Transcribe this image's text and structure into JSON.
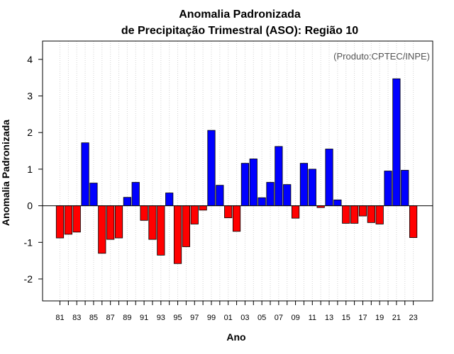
{
  "chart_data": {
    "type": "bar",
    "title_line1": "Anomalia Padronizada",
    "title_line2": "de Precipitação Trimestral (ASO): Região 10",
    "source_note": "(Produto:CPTEC/INPE)",
    "xlabel": "Ano",
    "ylabel": "Anomalia Padronizada",
    "ylim": [
      -2.6,
      4.5
    ],
    "yticks": [
      -2,
      -1,
      0,
      1,
      2,
      3,
      4
    ],
    "ytick_labels": [
      "-2",
      "-1",
      "0",
      "1",
      "2",
      "3",
      "4"
    ],
    "grid": "vertical dotted",
    "categories": [
      "81",
      "82",
      "83",
      "84",
      "85",
      "86",
      "87",
      "88",
      "89",
      "90",
      "91",
      "92",
      "93",
      "94",
      "95",
      "96",
      "97",
      "98",
      "99",
      "00",
      "01",
      "02",
      "03",
      "04",
      "05",
      "06",
      "07",
      "08",
      "09",
      "10",
      "11",
      "12",
      "13",
      "14",
      "15",
      "16",
      "17",
      "18",
      "19",
      "20",
      "21",
      "22",
      "23"
    ],
    "tick_labels": [
      "81",
      "83",
      "85",
      "87",
      "89",
      "91",
      "93",
      "95",
      "97",
      "99",
      "01",
      "03",
      "05",
      "07",
      "09",
      "11",
      "13",
      "15",
      "17",
      "19",
      "21",
      "23"
    ],
    "values": [
      -0.88,
      -0.78,
      -0.72,
      1.72,
      0.62,
      -1.3,
      -0.92,
      -0.88,
      0.23,
      0.64,
      -0.4,
      -0.92,
      -1.35,
      0.35,
      -1.58,
      -1.12,
      -0.5,
      -0.12,
      2.06,
      0.56,
      -0.33,
      -0.7,
      1.16,
      1.28,
      0.22,
      0.64,
      1.62,
      0.58,
      -0.34,
      1.16,
      1.0,
      -0.05,
      1.55,
      0.16,
      -0.48,
      -0.48,
      -0.28,
      -0.46,
      -0.5,
      0.95,
      3.47,
      0.97,
      -0.87
    ],
    "colors": {
      "positive": "#0000ff",
      "negative": "#ff0000",
      "stroke": "#000000",
      "grid": "#d3d3d3"
    }
  }
}
